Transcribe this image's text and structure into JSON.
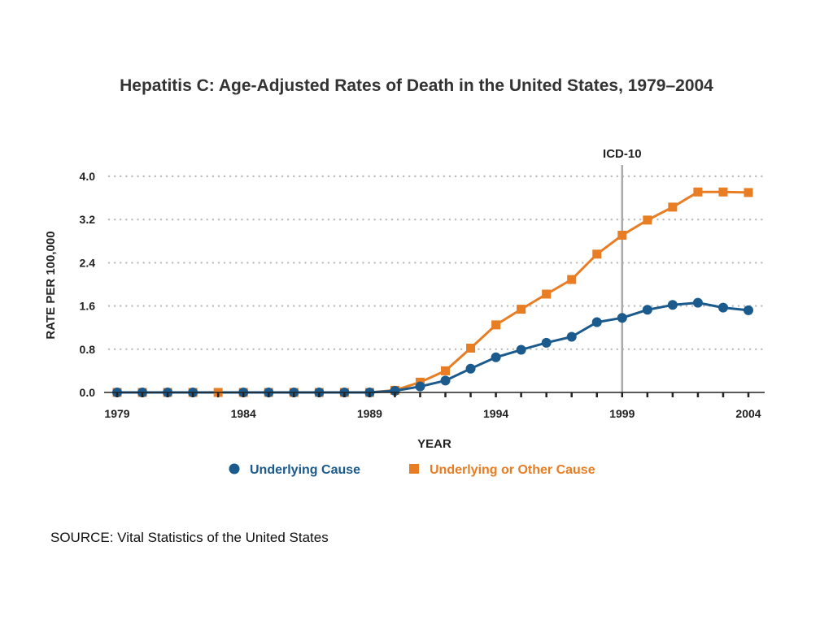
{
  "title": "Hepatitis C:  Age-Adjusted Rates of Death in the United States, 1979–2004",
  "source": "SOURCE:  Vital Statistics of the United States",
  "colors": {
    "underlying": "#1a5a8c",
    "other": "#e87d23",
    "marker_line": "#aaaaaa",
    "grid": "#bbbbbb"
  },
  "chart_data": {
    "type": "line",
    "xlabel": "YEAR",
    "ylabel": "RATE PER 100,000",
    "xlim": [
      1979,
      2004
    ],
    "ylim": [
      0,
      4.0
    ],
    "x_ticks": [
      1979,
      1984,
      1989,
      1994,
      1999,
      2004
    ],
    "y_ticks": [
      "0.0",
      "0.8",
      "1.6",
      "2.4",
      "3.2",
      "4.0"
    ],
    "grid": "horizontal dotted",
    "legend_position": "bottom",
    "vline": {
      "x": 1999,
      "label": "ICD-10"
    },
    "x": [
      1979,
      1980,
      1981,
      1982,
      1983,
      1984,
      1985,
      1986,
      1987,
      1988,
      1989,
      1990,
      1991,
      1992,
      1993,
      1994,
      1995,
      1996,
      1997,
      1998,
      1999,
      2000,
      2001,
      2002,
      2003,
      2004
    ],
    "series": [
      {
        "name": "Underlying Cause",
        "marker": "circle",
        "values": [
          0,
          0,
          0,
          0,
          null,
          0,
          0,
          0,
          0,
          0,
          0,
          0.03,
          0.11,
          0.22,
          0.44,
          0.65,
          0.79,
          0.92,
          1.03,
          1.3,
          1.38,
          1.53,
          1.62,
          1.66,
          1.57,
          1.52
        ]
      },
      {
        "name": "Underlying or Other Cause",
        "marker": "square",
        "values": [
          0,
          0,
          0,
          0,
          0,
          0,
          0,
          0,
          0,
          0,
          0,
          0.04,
          0.19,
          0.4,
          0.82,
          1.25,
          1.54,
          1.82,
          2.09,
          2.56,
          2.91,
          3.19,
          3.43,
          3.71,
          3.71,
          3.7
        ]
      }
    ]
  }
}
